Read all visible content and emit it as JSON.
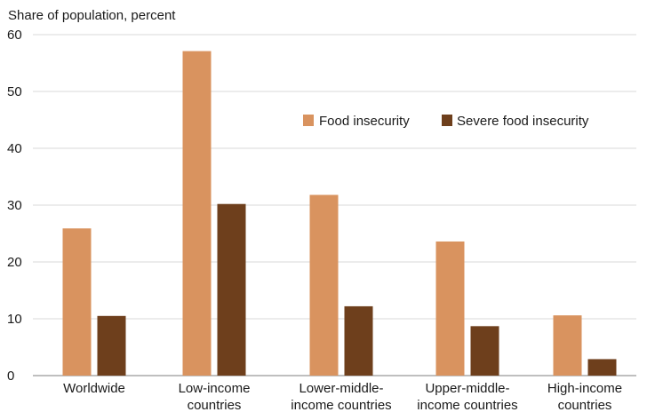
{
  "chart_data": {
    "type": "bar",
    "title": "",
    "ylabel": "Share of population, percent",
    "xlabel": "",
    "ylim": [
      0,
      60
    ],
    "yticks": [
      0,
      10,
      20,
      30,
      40,
      50,
      60
    ],
    "grid": true,
    "legend_position": "top-right",
    "categories": [
      [
        "Worldwide"
      ],
      [
        "Low-income",
        "countries"
      ],
      [
        "Lower-middle-",
        "income countries"
      ],
      [
        "Upper-middle-",
        "income countries"
      ],
      [
        "High-income",
        "countries"
      ]
    ],
    "series": [
      {
        "name": "Food insecurity",
        "color": "#D9935F",
        "values": [
          25.9,
          57.1,
          31.8,
          23.6,
          10.6
        ]
      },
      {
        "name": "Severe food insecurity",
        "color": "#6E3F1C",
        "values": [
          10.5,
          30.2,
          12.2,
          8.7,
          2.9
        ]
      }
    ]
  }
}
